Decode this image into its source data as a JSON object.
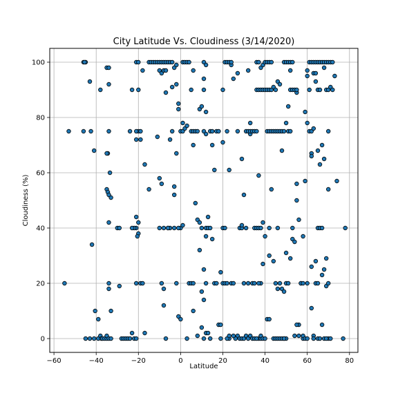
{
  "chart_data": {
    "type": "scatter",
    "title": "City Latitude Vs. Cloudiness (3/14/2020)",
    "xlabel": "Latitude",
    "ylabel": "Cloudiness (%)",
    "xlim": [
      -62,
      84
    ],
    "ylim": [
      -5,
      105
    ],
    "xticks": [
      -60,
      -40,
      -20,
      0,
      20,
      40,
      60,
      80
    ],
    "yticks": [
      0,
      20,
      40,
      60,
      80,
      100
    ],
    "grid": true,
    "legend": "none",
    "colors": {
      "marker_fill": "#1f77b4",
      "marker_edge": "#000000",
      "grid": "#b0b0b0"
    },
    "points": [
      [
        -55,
        20
      ],
      [
        -53,
        75
      ],
      [
        -46,
        100
      ],
      [
        -45,
        100
      ],
      [
        -45.5,
        100
      ],
      [
        -46,
        75
      ],
      [
        -43,
        93
      ],
      [
        -42.5,
        75
      ],
      [
        -42,
        34
      ],
      [
        -41,
        68
      ],
      [
        -40.5,
        10
      ],
      [
        -39,
        7
      ],
      [
        -45,
        0
      ],
      [
        -43,
        0
      ],
      [
        -41,
        0
      ],
      [
        -39,
        0
      ],
      [
        -38,
        1
      ],
      [
        -37.5,
        0
      ],
      [
        -37,
        0
      ],
      [
        -36,
        0
      ],
      [
        -35,
        0
      ],
      [
        -35,
        1
      ],
      [
        -34,
        0
      ],
      [
        -34,
        20
      ],
      [
        -34,
        18
      ],
      [
        -33,
        0
      ],
      [
        -33,
        10
      ],
      [
        -33,
        51
      ],
      [
        -38,
        90
      ],
      [
        -35,
        98
      ],
      [
        -34,
        98
      ],
      [
        -34,
        92
      ],
      [
        -34,
        75
      ],
      [
        -34.5,
        67
      ],
      [
        -35,
        67
      ],
      [
        -35,
        54
      ],
      [
        -34.5,
        53
      ],
      [
        -34,
        52
      ],
      [
        -33.5,
        60
      ],
      [
        -34,
        42
      ],
      [
        -30,
        40
      ],
      [
        -29,
        40
      ],
      [
        -29,
        19
      ],
      [
        -28,
        0
      ],
      [
        -27,
        0
      ],
      [
        -26,
        0
      ],
      [
        -25,
        0
      ],
      [
        -24,
        0
      ],
      [
        -23,
        2
      ],
      [
        -23,
        90
      ],
      [
        -24,
        75
      ],
      [
        -22,
        0
      ],
      [
        -21,
        0
      ],
      [
        -20,
        90
      ],
      [
        -21,
        100
      ],
      [
        -20,
        100
      ],
      [
        -20,
        75
      ],
      [
        -21,
        75
      ],
      [
        -19,
        75
      ],
      [
        -21,
        72
      ],
      [
        -19,
        72
      ],
      [
        -21,
        44
      ],
      [
        -20,
        42
      ],
      [
        -21,
        40
      ],
      [
        -20,
        38
      ],
      [
        -20.5,
        37
      ],
      [
        -22,
        40
      ],
      [
        -23,
        40
      ],
      [
        -21,
        20
      ],
      [
        -19,
        20
      ],
      [
        -18,
        20
      ],
      [
        -18,
        97
      ],
      [
        -17,
        63
      ],
      [
        -17,
        2
      ],
      [
        -15,
        100
      ],
      [
        -14,
        100
      ],
      [
        -13,
        100
      ],
      [
        -12,
        100
      ],
      [
        -11,
        100
      ],
      [
        -10,
        100
      ],
      [
        -9,
        100
      ],
      [
        -8,
        100
      ],
      [
        -7,
        100
      ],
      [
        -10,
        97
      ],
      [
        -9,
        96
      ],
      [
        -8,
        97
      ],
      [
        -7,
        97
      ],
      [
        -7,
        89
      ],
      [
        -6,
        100
      ],
      [
        -5,
        100
      ],
      [
        -4,
        100
      ],
      [
        -3,
        98
      ],
      [
        -2,
        92
      ],
      [
        -2,
        99
      ],
      [
        -15,
        54
      ],
      [
        -11,
        73
      ],
      [
        -10,
        58
      ],
      [
        -9,
        56
      ],
      [
        -10,
        40
      ],
      [
        -8,
        40
      ],
      [
        -6,
        40
      ],
      [
        -5,
        40
      ],
      [
        -5,
        72
      ],
      [
        -4,
        91
      ],
      [
        -4,
        75
      ],
      [
        -9,
        20
      ],
      [
        -8,
        18
      ],
      [
        -8,
        12
      ],
      [
        -7,
        0
      ],
      [
        -6,
        40
      ],
      [
        -3,
        40
      ],
      [
        -3,
        55
      ],
      [
        -3,
        52
      ],
      [
        -2,
        67
      ],
      [
        -1,
        83
      ],
      [
        -1,
        85
      ],
      [
        -2,
        20
      ],
      [
        -1,
        8
      ],
      [
        0,
        7
      ],
      [
        0,
        40
      ],
      [
        -1,
        40
      ],
      [
        0,
        75
      ],
      [
        1,
        75
      ],
      [
        2,
        76
      ],
      [
        3,
        77
      ],
      [
        1,
        100
      ],
      [
        2,
        100
      ],
      [
        3,
        100
      ],
      [
        4,
        100
      ],
      [
        1,
        41
      ],
      [
        1,
        78
      ],
      [
        3,
        0
      ],
      [
        4,
        20
      ],
      [
        5,
        20
      ],
      [
        6,
        20
      ],
      [
        5,
        75
      ],
      [
        6,
        75
      ],
      [
        6,
        70
      ],
      [
        7,
        75
      ],
      [
        8,
        75
      ],
      [
        5,
        90
      ],
      [
        6,
        97
      ],
      [
        6,
        10
      ],
      [
        7,
        49
      ],
      [
        8,
        43
      ],
      [
        8,
        1
      ],
      [
        9,
        32
      ],
      [
        9,
        42
      ],
      [
        10,
        40
      ],
      [
        9,
        83
      ],
      [
        10,
        84
      ],
      [
        10,
        17
      ],
      [
        10,
        4
      ],
      [
        11,
        0
      ],
      [
        11,
        75
      ],
      [
        12,
        74
      ],
      [
        12,
        82
      ],
      [
        11,
        90
      ],
      [
        11,
        100
      ],
      [
        12,
        99
      ],
      [
        11,
        94
      ],
      [
        12,
        40
      ],
      [
        12,
        37
      ],
      [
        13,
        40
      ],
      [
        13,
        44
      ],
      [
        14,
        40
      ],
      [
        14,
        75
      ],
      [
        15,
        75
      ],
      [
        15,
        70
      ],
      [
        11,
        25
      ],
      [
        11,
        14
      ],
      [
        12,
        20
      ],
      [
        12,
        2
      ],
      [
        13,
        2
      ],
      [
        14,
        0
      ],
      [
        15,
        36
      ],
      [
        16,
        61
      ],
      [
        16,
        20
      ],
      [
        17,
        20
      ],
      [
        17,
        75
      ],
      [
        18,
        75
      ],
      [
        18,
        5
      ],
      [
        19,
        5
      ],
      [
        19,
        24
      ],
      [
        19,
        0
      ],
      [
        20,
        71
      ],
      [
        20,
        90
      ],
      [
        20,
        40
      ],
      [
        21,
        40
      ],
      [
        20,
        20
      ],
      [
        21,
        20
      ],
      [
        22,
        20
      ],
      [
        22,
        75
      ],
      [
        21,
        100
      ],
      [
        22,
        100
      ],
      [
        23,
        100
      ],
      [
        24,
        99
      ],
      [
        24,
        100
      ],
      [
        23,
        61
      ],
      [
        23,
        0
      ],
      [
        22,
        0
      ],
      [
        23,
        1
      ],
      [
        24,
        20
      ],
      [
        25,
        20
      ],
      [
        25,
        94
      ],
      [
        27,
        75
      ],
      [
        27,
        96
      ],
      [
        29,
        65
      ],
      [
        28,
        40
      ],
      [
        29,
        40
      ],
      [
        29,
        41
      ],
      [
        30,
        52
      ],
      [
        30,
        20
      ],
      [
        31,
        40
      ],
      [
        31,
        75
      ],
      [
        32,
        75
      ],
      [
        32,
        97
      ],
      [
        32,
        20
      ],
      [
        33,
        78
      ],
      [
        33,
        74
      ],
      [
        33,
        75
      ],
      [
        34,
        75
      ],
      [
        35,
        75
      ],
      [
        36,
        75
      ],
      [
        27,
        1
      ],
      [
        28,
        0
      ],
      [
        29,
        0
      ],
      [
        30,
        0
      ],
      [
        31,
        1
      ],
      [
        32,
        0
      ],
      [
        33,
        1
      ],
      [
        34,
        0
      ],
      [
        35,
        0
      ],
      [
        34,
        20
      ],
      [
        35,
        20
      ],
      [
        35,
        40
      ],
      [
        36,
        40
      ],
      [
        37,
        40
      ],
      [
        36,
        90
      ],
      [
        37,
        90
      ],
      [
        38,
        90
      ],
      [
        39,
        90
      ],
      [
        40,
        90
      ],
      [
        41,
        90
      ],
      [
        37,
        59
      ],
      [
        38,
        40
      ],
      [
        39,
        42
      ],
      [
        38,
        20
      ],
      [
        37,
        20
      ],
      [
        39,
        27
      ],
      [
        37,
        0
      ],
      [
        38,
        0
      ],
      [
        38,
        1
      ],
      [
        39,
        0
      ],
      [
        40,
        0
      ],
      [
        36,
        100
      ],
      [
        37,
        100
      ],
      [
        38,
        98
      ],
      [
        39,
        99
      ],
      [
        40,
        100
      ],
      [
        41,
        100
      ],
      [
        42,
        100
      ],
      [
        43,
        100
      ],
      [
        41,
        75
      ],
      [
        42,
        75
      ],
      [
        43,
        75
      ],
      [
        44,
        75
      ],
      [
        45,
        75
      ],
      [
        46,
        75
      ],
      [
        47,
        75
      ],
      [
        48,
        75
      ],
      [
        49,
        75
      ],
      [
        40,
        37
      ],
      [
        41,
        7
      ],
      [
        42,
        7
      ],
      [
        42,
        30
      ],
      [
        43,
        54
      ],
      [
        42,
        40
      ],
      [
        44,
        0
      ],
      [
        45,
        0
      ],
      [
        46,
        0
      ],
      [
        47,
        0
      ],
      [
        48,
        0
      ],
      [
        49,
        0
      ],
      [
        50,
        0
      ],
      [
        46,
        40
      ],
      [
        45,
        20
      ],
      [
        46,
        18
      ],
      [
        47,
        20
      ],
      [
        48,
        18
      ],
      [
        49,
        17
      ],
      [
        50,
        20
      ],
      [
        51,
        20
      ],
      [
        42,
        90
      ],
      [
        43,
        90
      ],
      [
        44,
        91
      ],
      [
        45,
        90
      ],
      [
        46,
        93
      ],
      [
        47,
        92
      ],
      [
        48,
        68
      ],
      [
        50,
        31
      ],
      [
        50,
        78
      ],
      [
        51,
        75
      ],
      [
        52,
        75
      ],
      [
        49,
        100
      ],
      [
        50,
        100
      ],
      [
        51,
        100
      ],
      [
        52,
        100
      ],
      [
        53,
        100
      ],
      [
        51,
        84
      ],
      [
        52,
        97
      ],
      [
        52,
        90
      ],
      [
        53,
        90
      ],
      [
        54,
        90
      ],
      [
        55,
        89
      ],
      [
        55,
        90
      ],
      [
        52,
        29
      ],
      [
        53,
        40
      ],
      [
        53,
        36
      ],
      [
        54,
        35
      ],
      [
        55,
        56
      ],
      [
        55,
        50
      ],
      [
        56,
        43
      ],
      [
        56,
        5
      ],
      [
        57,
        20
      ],
      [
        58,
        37
      ],
      [
        58,
        0
      ],
      [
        58,
        1
      ],
      [
        59,
        0
      ],
      [
        60,
        0
      ],
      [
        55,
        5
      ],
      [
        54,
        1
      ],
      [
        56,
        1
      ],
      [
        57,
        20
      ],
      [
        58,
        20
      ],
      [
        59,
        57
      ],
      [
        59,
        82
      ],
      [
        60,
        78
      ],
      [
        60,
        97
      ],
      [
        60,
        95
      ],
      [
        61,
        90
      ],
      [
        61,
        100
      ],
      [
        62,
        100
      ],
      [
        63,
        100
      ],
      [
        64,
        100
      ],
      [
        65,
        100
      ],
      [
        66,
        100
      ],
      [
        67,
        100
      ],
      [
        68,
        100
      ],
      [
        69,
        100
      ],
      [
        70,
        100
      ],
      [
        71,
        100
      ],
      [
        72,
        100
      ],
      [
        61,
        75
      ],
      [
        62,
        75
      ],
      [
        63,
        76
      ],
      [
        62,
        67
      ],
      [
        62,
        66
      ],
      [
        63,
        96
      ],
      [
        64,
        96
      ],
      [
        64,
        93
      ],
      [
        65,
        68
      ],
      [
        66,
        63
      ],
      [
        65,
        90
      ],
      [
        66,
        90
      ],
      [
        67,
        70
      ],
      [
        68,
        65
      ],
      [
        68,
        98
      ],
      [
        69,
        90
      ],
      [
        70,
        90
      ],
      [
        70,
        75
      ],
      [
        71,
        91
      ],
      [
        72,
        90
      ],
      [
        73,
        95
      ],
      [
        62,
        26
      ],
      [
        62,
        11
      ],
      [
        63,
        1
      ],
      [
        63,
        0
      ],
      [
        64,
        28
      ],
      [
        64,
        20
      ],
      [
        65,
        20
      ],
      [
        65,
        40
      ],
      [
        66,
        40
      ],
      [
        67,
        40
      ],
      [
        67,
        23
      ],
      [
        68,
        25
      ],
      [
        69,
        19
      ],
      [
        69,
        29
      ],
      [
        70,
        20
      ],
      [
        70,
        0
      ],
      [
        71,
        0
      ],
      [
        67,
        5
      ],
      [
        68,
        0
      ],
      [
        69,
        0
      ],
      [
        65,
        0
      ],
      [
        66,
        0
      ],
      [
        74,
        57
      ],
      [
        77,
        0
      ],
      [
        78,
        40
      ],
      [
        70,
        54
      ],
      [
        60,
        20
      ],
      [
        49,
        0
      ],
      [
        44,
        28
      ],
      [
        36,
        0
      ],
      [
        26,
        0
      ],
      [
        25,
        1
      ]
    ]
  }
}
